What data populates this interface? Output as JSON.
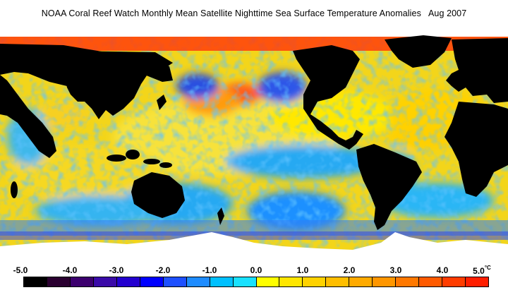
{
  "title": "NOAA Coral Reef Watch Monthly Mean Satellite Nighttime Sea Surface Temperature Anomalies",
  "date": "Aug 2007",
  "colorbar": {
    "ticks": [
      "-5.0",
      "-4.0",
      "-3.0",
      "-2.0",
      "-1.0",
      "0.0",
      "1.0",
      "2.0",
      "3.0",
      "4.0",
      "5.0"
    ],
    "unit": "°C",
    "colors": [
      "#000000",
      "#2a0030",
      "#3c006e",
      "#3a0aa8",
      "#2300cf",
      "#0000ff",
      "#1e50ff",
      "#1e8cff",
      "#00c0ff",
      "#19e1ff",
      "#ffff00",
      "#ffe600",
      "#ffd200",
      "#ffbe00",
      "#ffaa00",
      "#ff9600",
      "#ff7800",
      "#ff5a00",
      "#ff3c00",
      "#ff1e00"
    ]
  },
  "map": {
    "land_color": "#000000",
    "ice_color": "#ffffff",
    "ocean_base_color": "#f4d818"
  }
}
